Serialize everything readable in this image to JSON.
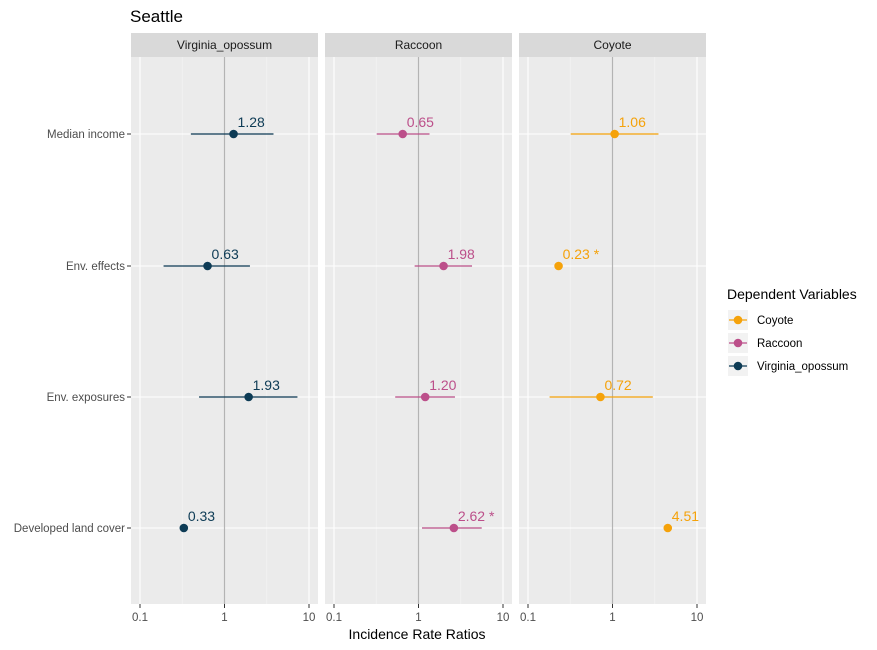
{
  "chart_data": {
    "type": "scatter",
    "title": "Seattle",
    "xlabel": "Incidence Rate Ratios",
    "ylabel": "",
    "x_scale": "log",
    "xlim": [
      0.1,
      10
    ],
    "x_ticks": [
      "0.1",
      "1",
      "10"
    ],
    "x_tick_values": [
      0.1,
      1,
      10
    ],
    "reference_line_x": 1,
    "categories": [
      "Median income",
      "Env. effects",
      "Env. exposures",
      "Developed land cover"
    ],
    "facets": [
      "Virginia_opossum",
      "Raccoon",
      "Coyote"
    ],
    "grid": true,
    "legend": {
      "title": "Dependent Variables",
      "placement": "right",
      "entries": [
        "Coyote",
        "Raccoon",
        "Virginia_opossum"
      ]
    },
    "colors": {
      "Virginia_opossum": "#0d3b55",
      "Raccoon": "#bc4f8a",
      "Coyote": "#f5a20a",
      "panel_bg": "#ebebeb",
      "strip_bg": "#d9d9d9",
      "ref_line": "#b3b3b3"
    },
    "series": [
      {
        "name": "Virginia_opossum",
        "points": [
          {
            "category": "Median income",
            "estimate": 1.28,
            "ci_low": 0.4,
            "ci_high": 3.8,
            "label": "1.28"
          },
          {
            "category": "Env. effects",
            "estimate": 0.63,
            "ci_low": 0.19,
            "ci_high": 2.0,
            "label": "0.63"
          },
          {
            "category": "Env. exposures",
            "estimate": 1.93,
            "ci_low": 0.5,
            "ci_high": 7.3,
            "label": "1.93"
          },
          {
            "category": "Developed land cover",
            "estimate": 0.33,
            "ci_low": 0.32,
            "ci_high": 0.34,
            "label": "0.33"
          }
        ]
      },
      {
        "name": "Raccoon",
        "points": [
          {
            "category": "Median income",
            "estimate": 0.65,
            "ci_low": 0.32,
            "ci_high": 1.35,
            "label": "0.65"
          },
          {
            "category": "Env. effects",
            "estimate": 1.98,
            "ci_low": 0.9,
            "ci_high": 4.3,
            "label": "1.98"
          },
          {
            "category": "Env. exposures",
            "estimate": 1.2,
            "ci_low": 0.53,
            "ci_high": 2.7,
            "label": "1.20"
          },
          {
            "category": "Developed land cover",
            "estimate": 2.62,
            "ci_low": 1.1,
            "ci_high": 5.6,
            "label": "2.62 *"
          }
        ]
      },
      {
        "name": "Coyote",
        "points": [
          {
            "category": "Median income",
            "estimate": 1.06,
            "ci_low": 0.32,
            "ci_high": 3.5,
            "label": "1.06"
          },
          {
            "category": "Env. effects",
            "estimate": 0.23,
            "ci_low": 0.22,
            "ci_high": 0.24,
            "label": "0.23 *"
          },
          {
            "category": "Env. exposures",
            "estimate": 0.72,
            "ci_low": 0.18,
            "ci_high": 3.0,
            "label": "0.72"
          },
          {
            "category": "Developed land cover",
            "estimate": 4.51,
            "ci_low": 4.4,
            "ci_high": 4.6,
            "label": "4.51"
          }
        ]
      }
    ]
  }
}
